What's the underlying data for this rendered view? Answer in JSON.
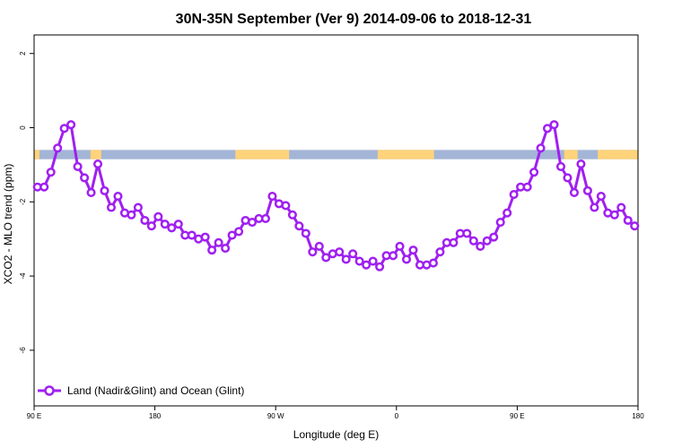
{
  "chart_data": {
    "type": "line",
    "title": "30N-35N September (Ver 9)   2014-09-06 to 2018-12-31",
    "xlabel": "Longitude (deg E)",
    "ylabel": "XCO2 - MLO trend (ppm)",
    "xlim": [
      90,
      540
    ],
    "ylim": [
      -7.5,
      2.5
    ],
    "x_ticks": [
      {
        "value": 90,
        "label": "90 E"
      },
      {
        "value": 180,
        "label": "180"
      },
      {
        "value": 270,
        "label": "90 W"
      },
      {
        "value": 360,
        "label": "0"
      },
      {
        "value": 450,
        "label": "90 E"
      },
      {
        "value": 540,
        "label": "180"
      }
    ],
    "y_ticks": [
      {
        "value": 2,
        "label": "2"
      },
      {
        "value": 0,
        "label": "0"
      },
      {
        "value": -2,
        "label": "-2"
      },
      {
        "value": -4,
        "label": "-4"
      },
      {
        "value": -6,
        "label": "-6"
      }
    ],
    "grid": false,
    "legend_position": "bottom-left",
    "surface_band": {
      "y_range": [
        -0.85,
        -0.6
      ],
      "colors": {
        "land": "#ffd37a",
        "ocean": "#a3b5d6"
      },
      "land_segments": [
        [
          90,
          94
        ],
        [
          132,
          140
        ],
        [
          240,
          280
        ],
        [
          346,
          388
        ],
        [
          485,
          495
        ],
        [
          510,
          540
        ]
      ]
    },
    "series": [
      {
        "name": "Land (Nadir&Glint) and Ocean (Glint)",
        "color": "#a020f0",
        "x": [
          92.5,
          97.5,
          102.5,
          107.5,
          112.5,
          117.5,
          122.5,
          127.5,
          132.5,
          137.5,
          142.5,
          147.5,
          152.5,
          157.5,
          162.5,
          167.5,
          172.5,
          177.5,
          182.5,
          187.5,
          192.5,
          197.5,
          202.5,
          207.5,
          212.5,
          217.5,
          222.5,
          227.5,
          232.5,
          237.5,
          242.5,
          247.5,
          252.5,
          257.5,
          262.5,
          267.5,
          272.5,
          277.5,
          282.5,
          287.5,
          292.5,
          297.5,
          302.5,
          307.5,
          312.5,
          317.5,
          322.5,
          327.5,
          332.5,
          337.5,
          342.5,
          347.5,
          352.5,
          357.5,
          362.5,
          367.5,
          372.5,
          377.5,
          382.5,
          387.5,
          392.5,
          397.5,
          402.5,
          407.5,
          412.5,
          417.5,
          422.5,
          427.5,
          432.5,
          437.5,
          442.5,
          447.5,
          452.5,
          457.5,
          462.5,
          467.5,
          472.5,
          477.5,
          482.5,
          487.5,
          492.5,
          497.5,
          502.5,
          507.5,
          512.5,
          517.5,
          522.5,
          527.5,
          532.5,
          537.5
        ],
        "y": [
          -1.6,
          -1.6,
          -1.2,
          -0.55,
          -0.02,
          0.08,
          -1.05,
          -1.35,
          -1.75,
          -0.98,
          -1.7,
          -2.15,
          -1.85,
          -2.3,
          -2.35,
          -2.15,
          -2.5,
          -2.65,
          -2.4,
          -2.6,
          -2.7,
          -2.6,
          -2.9,
          -2.9,
          -3.0,
          -2.95,
          -3.3,
          -3.1,
          -3.25,
          -2.9,
          -2.8,
          -2.5,
          -2.55,
          -2.45,
          -2.45,
          -1.85,
          -2.05,
          -2.1,
          -2.35,
          -2.65,
          -2.85,
          -3.35,
          -3.2,
          -3.5,
          -3.4,
          -3.35,
          -3.55,
          -3.4,
          -3.6,
          -3.7,
          -3.6,
          -3.75,
          -3.45,
          -3.45,
          -3.2,
          -3.55,
          -3.3,
          -3.7,
          -3.7,
          -3.65,
          -3.35,
          -3.1,
          -3.1,
          -2.85,
          -2.85,
          -3.05,
          -3.2,
          -3.05,
          -2.95,
          -2.55,
          -2.3,
          -1.8,
          -1.6,
          -1.6,
          -1.2,
          -0.55,
          -0.02,
          0.08,
          -1.05,
          -1.35,
          -1.75,
          -0.98,
          -1.7,
          -2.15,
          -1.85,
          -2.3,
          -2.35,
          -2.15,
          -2.5,
          -2.65
        ]
      }
    ]
  }
}
